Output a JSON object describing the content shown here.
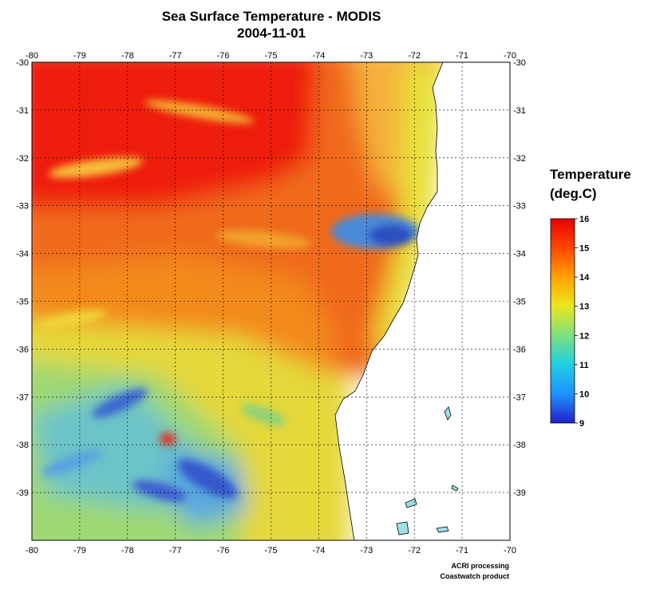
{
  "title": "Sea Surface Temperature - MODIS",
  "date": "2004-11-01",
  "legend": {
    "title_line1": "Temperature",
    "title_line2": "(deg.C)",
    "ticks": [
      "16",
      "15",
      "14",
      "13",
      "12",
      "11",
      "10",
      "9"
    ],
    "range": [
      9,
      16
    ],
    "colors": [
      "#2020c8",
      "#1e90ff",
      "#20d0e0",
      "#7ee07e",
      "#e8e820",
      "#ffa500",
      "#ff4500",
      "#e80000"
    ]
  },
  "credits": {
    "line1": "ACRI processing",
    "line2": "Coastwatch product"
  },
  "chart_data": {
    "type": "heatmap",
    "xlabel": "",
    "ylabel": "",
    "xlim": [
      -80,
      -70
    ],
    "ylim": [
      -40,
      -30
    ],
    "x_ticks": [
      "-80",
      "-79",
      "-78",
      "-77",
      "-76",
      "-75",
      "-74",
      "-73",
      "-72",
      "-71",
      "-70"
    ],
    "y_ticks": [
      "-30",
      "-31",
      "-32",
      "-33",
      "-34",
      "-35",
      "-36",
      "-37",
      "-38",
      "-39"
    ],
    "grid": true,
    "colorbar_range": [
      9,
      16
    ],
    "regions": [
      {
        "lon_range": [
          -80,
          -74
        ],
        "lat_range": [
          -34,
          -30
        ],
        "sst": 15.8
      },
      {
        "lon_range": [
          -74,
          -72
        ],
        "lat_range": [
          -33,
          -30
        ],
        "sst": 14.5
      },
      {
        "lon_range": [
          -80,
          -74
        ],
        "lat_range": [
          -36,
          -34
        ],
        "sst": 15.0
      },
      {
        "lon_range": [
          -73.5,
          -72.5
        ],
        "lat_range": [
          -34,
          -33
        ],
        "sst": 10.5
      },
      {
        "lon_range": [
          -80,
          -74
        ],
        "lat_range": [
          -40,
          -36
        ],
        "sst": 12.5
      }
    ]
  }
}
